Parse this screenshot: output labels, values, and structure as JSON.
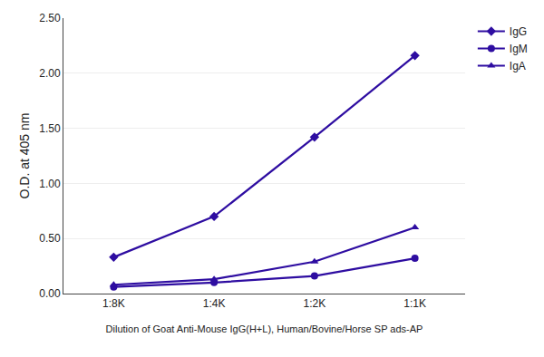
{
  "chart_data": {
    "type": "line",
    "categories": [
      "1:8K",
      "1:4K",
      "1:2K",
      "1:1K"
    ],
    "series": [
      {
        "name": "IgG",
        "color": "#2e0da1",
        "marker": "diamond",
        "values": [
          0.33,
          0.7,
          1.42,
          2.16
        ]
      },
      {
        "name": "IgM",
        "color": "#2e0da1",
        "marker": "circle",
        "values": [
          0.06,
          0.1,
          0.16,
          0.32
        ]
      },
      {
        "name": "IgA",
        "color": "#2e0da1",
        "marker": "triangle-up",
        "values": [
          0.08,
          0.13,
          0.29,
          0.6
        ]
      }
    ],
    "xlabel": "Dilution of Goat Anti-Mouse IgG(H+L), Human/Bovine/Horse SP ads-AP",
    "ylabel": "O.D. at 405 nm",
    "ylim": [
      0.0,
      2.5
    ],
    "yticks": [
      {
        "value": 0.0,
        "label": "0.00"
      },
      {
        "value": 0.5,
        "label": "0.50"
      },
      {
        "value": 1.0,
        "label": "1.00"
      },
      {
        "value": 1.5,
        "label": "1.50"
      },
      {
        "value": 2.0,
        "label": "2.00"
      },
      {
        "value": 2.5,
        "label": "2.50"
      }
    ],
    "grid": true,
    "legend": "right"
  }
}
